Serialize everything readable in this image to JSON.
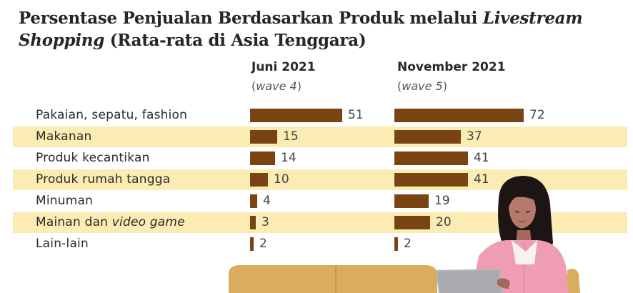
{
  "title": {
    "part1": "Persentase Penjualan Berdasarkan Produk melalui ",
    "italic1": "Livestream",
    "italic2": "Shopping",
    "part2": " (Rata-rata di Asia Tenggara)"
  },
  "colors": {
    "bar": "#7a4412",
    "band": "#fbecb3",
    "title": "#262626"
  },
  "illustration": {
    "icon": "woman-with-laptop-on-sofa-illustration"
  },
  "chart_data": {
    "type": "bar",
    "orientation": "horizontal",
    "categories": [
      "Pakaian, sepatu, fashion",
      "Makanan",
      "Produk kecantikan",
      "Produk rumah tangga",
      "Minuman",
      "Mainan dan video game",
      "Lain-lain"
    ],
    "category_labels": [
      {
        "text": "Pakaian, sepatu, fashion",
        "italic": ""
      },
      {
        "text": "Makanan",
        "italic": ""
      },
      {
        "text": "Produk kecantikan",
        "italic": ""
      },
      {
        "text": "Produk rumah tangga",
        "italic": ""
      },
      {
        "text": "Minuman",
        "italic": ""
      },
      {
        "text": "Mainan dan ",
        "italic": "video game"
      },
      {
        "text": "Lain-lain",
        "italic": ""
      }
    ],
    "series": [
      {
        "name": "Juni 2021",
        "subtitle_open": "(",
        "subtitle_italic": "wave 4",
        "subtitle_close": ")",
        "values": [
          51,
          15,
          14,
          10,
          4,
          3,
          2
        ]
      },
      {
        "name": "November 2021",
        "subtitle_open": "(",
        "subtitle_italic": "wave 5",
        "subtitle_close": ")",
        "values": [
          72,
          37,
          41,
          41,
          19,
          20,
          2
        ]
      }
    ],
    "unit": "%",
    "banded_rows": [
      1,
      3,
      5
    ]
  }
}
